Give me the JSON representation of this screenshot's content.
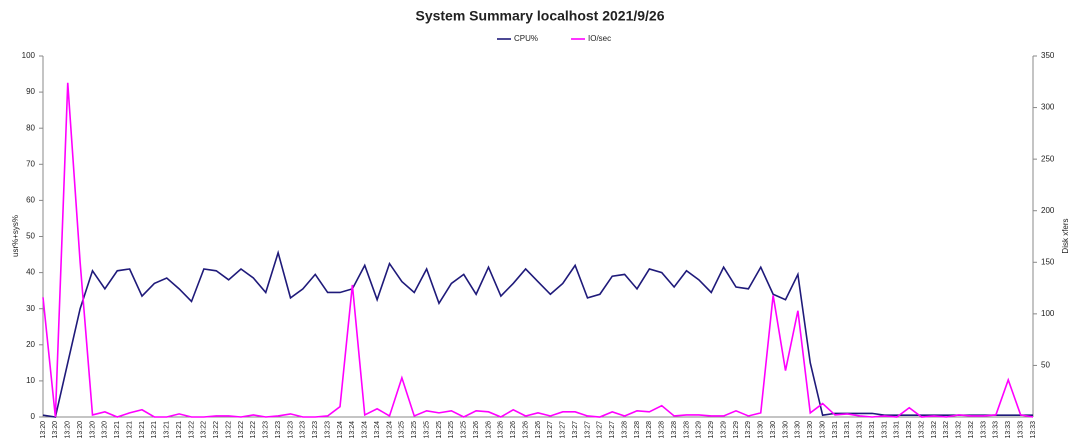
{
  "chart_data": {
    "type": "line",
    "title": "System Summary localhost  2021/9/26",
    "y_label": "usr%+sys%",
    "y2_label": "Disk xfers",
    "x": [
      "13:20",
      "13:20",
      "13:20",
      "13:20",
      "13:20",
      "13:20",
      "13:21",
      "13:21",
      "13:21",
      "13:21",
      "13:21",
      "13:21",
      "13:22",
      "13:22",
      "13:22",
      "13:22",
      "13:22",
      "13:22",
      "13:23",
      "13:23",
      "13:23",
      "13:23",
      "13:23",
      "13:23",
      "13:24",
      "13:24",
      "13:24",
      "13:24",
      "13:24",
      "13:25",
      "13:25",
      "13:25",
      "13:25",
      "13:25",
      "13:25",
      "13:26",
      "13:26",
      "13:26",
      "13:26",
      "13:26",
      "13:26",
      "13:27",
      "13:27",
      "13:27",
      "13:27",
      "13:27",
      "13:27",
      "13:28",
      "13:28",
      "13:28",
      "13:28",
      "13:28",
      "13:28",
      "13:29",
      "13:29",
      "13:29",
      "13:29",
      "13:29",
      "13:30",
      "13:30",
      "13:30",
      "13:30",
      "13:30",
      "13:30",
      "13:31",
      "13:31",
      "13:31",
      "13:31",
      "13:31",
      "13:31",
      "13:32",
      "13:32",
      "13:32",
      "13:32",
      "13:32",
      "13:32",
      "13:33",
      "13:33",
      "13:33",
      "13:33",
      "13:33"
    ],
    "series": [
      {
        "name": "CPU%",
        "color": "#1f1a7a",
        "axis": "y",
        "values": [
          0.5,
          0,
          15,
          30,
          40.5,
          35.5,
          40.5,
          41,
          33.5,
          37,
          38.5,
          35.5,
          32,
          41,
          40.5,
          38,
          41,
          38.5,
          34.5,
          45.5,
          33,
          35.5,
          39.5,
          34.5,
          34.5,
          35.5,
          42,
          32.5,
          42.5,
          37.5,
          34.5,
          41,
          31.5,
          37,
          39.5,
          34,
          41.5,
          33.5,
          37,
          41,
          37.5,
          34,
          37,
          42,
          33,
          34,
          39,
          39.5,
          35.5,
          41,
          40,
          36,
          40.5,
          38,
          34.5,
          41.5,
          36,
          35.5,
          41.5,
          34,
          32.5,
          39.5,
          15,
          0.5,
          1,
          1,
          1,
          1,
          0.5,
          0.5,
          0.5,
          0.5,
          0.5,
          0.5,
          0.5,
          0.5,
          0.5,
          0.5,
          0.5,
          0.5,
          0.5
        ]
      },
      {
        "name": "IO/sec",
        "color": "#ff00ff",
        "axis": "y2",
        "values": [
          116,
          0,
          324,
          150,
          2,
          5,
          0,
          4,
          7,
          0,
          0,
          3,
          0,
          0,
          1,
          1,
          0,
          2,
          0,
          1,
          3,
          0,
          0,
          1,
          10,
          128,
          2,
          8,
          1,
          38,
          1,
          6,
          4,
          6,
          0,
          6,
          5,
          0,
          7,
          1,
          4,
          1,
          5,
          5,
          1,
          0,
          5,
          1,
          6,
          5,
          11,
          1,
          2,
          2,
          1,
          1,
          6,
          1,
          4,
          118,
          45,
          103,
          4,
          13,
          2,
          3,
          1,
          0,
          1,
          0,
          9,
          0,
          1,
          0,
          2,
          1,
          1,
          2,
          36,
          2,
          0
        ]
      }
    ],
    "ylim": [
      0,
      100
    ],
    "yticks": [
      0,
      10,
      20,
      30,
      40,
      50,
      60,
      70,
      80,
      90,
      100
    ],
    "y2lim": [
      0,
      350
    ],
    "y2ticks": [
      50,
      100,
      150,
      200,
      250,
      300,
      350
    ],
    "legend": "top",
    "grid": false
  }
}
